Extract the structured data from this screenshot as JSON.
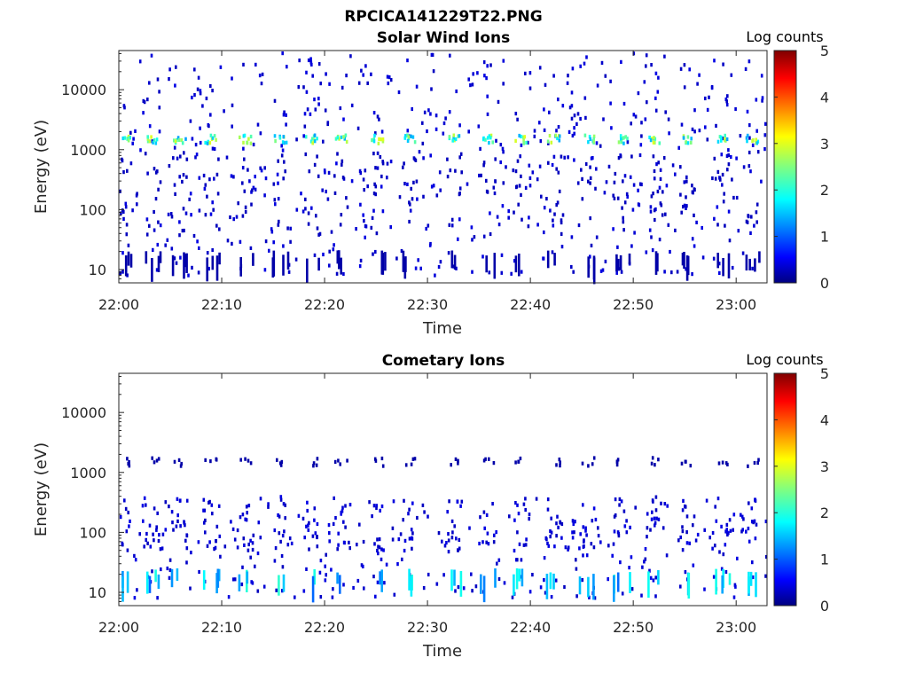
{
  "figure": {
    "title": "RPCICA141229T22.PNG"
  },
  "chart_data": [
    {
      "type": "heatmap",
      "title": "Solar Wind Ions",
      "xlabel": "Time",
      "ylabel": "Energy (eV)",
      "x_ticks": [
        "22:00",
        "22:10",
        "22:20",
        "22:30",
        "22:40",
        "22:50",
        "23:00"
      ],
      "x_range_minutes": [
        0,
        63
      ],
      "y_scale": "log",
      "y_ticks": [
        10,
        100,
        1000,
        10000
      ],
      "y_tick_labels": [
        "10",
        "100",
        "1000",
        "10000"
      ],
      "y_range": [
        6,
        45000
      ],
      "colorbar": {
        "label": "Log counts",
        "ticks": [
          "0",
          "1",
          "2",
          "3",
          "4",
          "5"
        ],
        "range": [
          0,
          5
        ],
        "colormap": "jet"
      },
      "bands": [
        {
          "energy_eV": 1600,
          "center_level": 2.2,
          "spread": 1.6
        },
        {
          "energy_eV": 10,
          "level": 0.2,
          "pattern": "vertical streaks"
        }
      ],
      "burst_times_min": [
        0.5,
        3.2,
        5.8,
        8.9,
        12.2,
        15.6,
        18.6,
        21.5,
        25.0,
        28.2,
        32.5,
        35.8,
        39.0,
        42.2,
        45.5,
        48.8,
        52.0,
        55.2,
        58.5,
        61.5
      ],
      "scatter_level": 0.3
    },
    {
      "type": "heatmap",
      "title": "Cometary Ions",
      "xlabel": "Time",
      "ylabel": "Energy (eV)",
      "x_ticks": [
        "22:00",
        "22:10",
        "22:20",
        "22:30",
        "22:40",
        "22:50",
        "23:00"
      ],
      "x_range_minutes": [
        0,
        63
      ],
      "y_scale": "log",
      "y_ticks": [
        10,
        100,
        1000,
        10000
      ],
      "y_tick_labels": [
        "10",
        "100",
        "1000",
        "10000"
      ],
      "y_range": [
        6,
        45000
      ],
      "colorbar": {
        "label": "Log counts",
        "ticks": [
          "0",
          "1",
          "2",
          "3",
          "4",
          "5"
        ],
        "range": [
          0,
          5
        ],
        "colormap": "jet"
      },
      "bands": [
        {
          "energy_eV": 12,
          "center_level": 1.6,
          "spread": 1.0,
          "pattern": "vertical streaks"
        },
        {
          "energy_eV": 1600,
          "level": 0.2
        },
        {
          "energy_eV": 150,
          "level": 0.3,
          "pattern": "scattered"
        }
      ],
      "burst_times_min": [
        0.5,
        3.2,
        5.8,
        8.9,
        12.2,
        15.6,
        18.6,
        21.5,
        25.0,
        28.2,
        32.5,
        35.8,
        39.0,
        42.2,
        45.5,
        48.8,
        52.0,
        55.2,
        58.5,
        61.5
      ],
      "scatter_level": 0.3
    }
  ]
}
